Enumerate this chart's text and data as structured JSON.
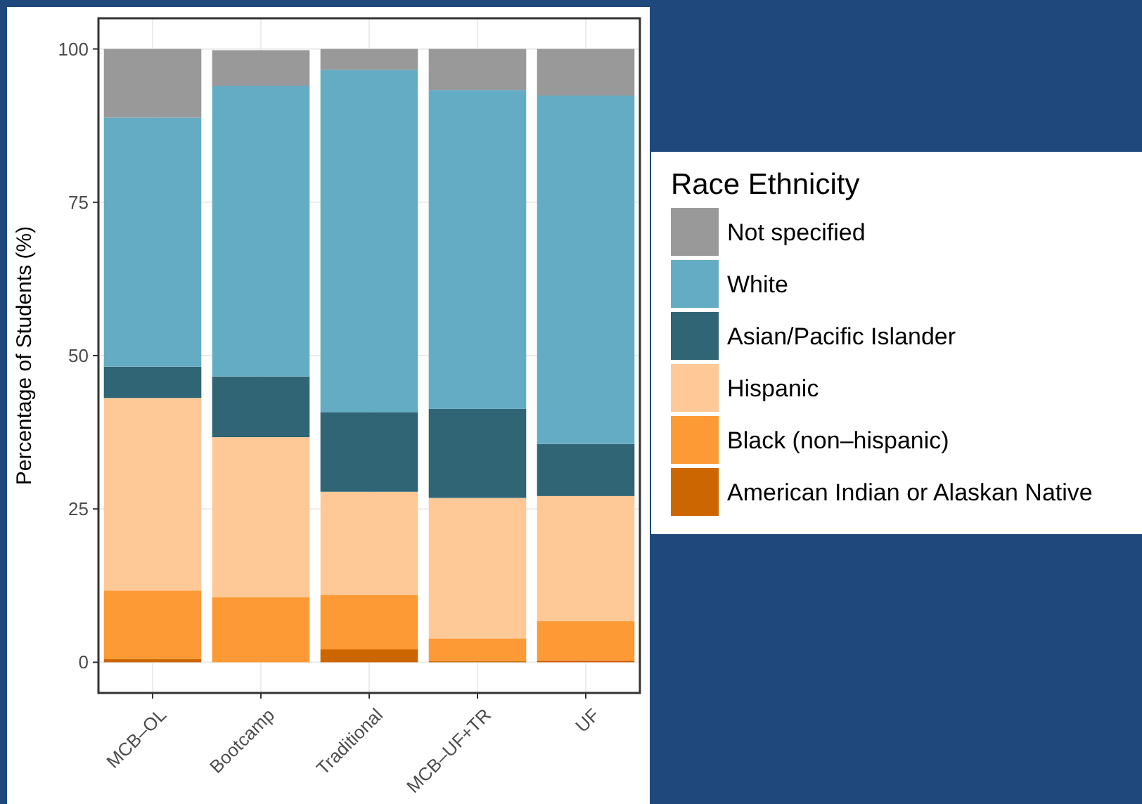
{
  "chart_data": {
    "type": "bar",
    "stacked": true,
    "ylabel": "Percentage of Students (%)",
    "legend_title": "Race Ethnicity",
    "legend": "right",
    "grid": true,
    "categories": [
      "MCB–OL",
      "Bootcamp",
      "Traditional",
      "MCB–UF+TR",
      "UF"
    ],
    "ylim": [
      -5,
      105
    ],
    "yticks": [
      0,
      25,
      50,
      75,
      100
    ],
    "series": [
      {
        "name": "American Indian or Alaskan Native",
        "color": "#cc6600",
        "values": [
          0.5,
          0,
          2.1,
          0.2,
          0.3
        ]
      },
      {
        "name": "Black (non–hispanic)",
        "color": "#fe9a35",
        "values": [
          11.2,
          10.6,
          8.9,
          3.7,
          6.4
        ]
      },
      {
        "name": "Hispanic",
        "color": "#fec997",
        "values": [
          31.4,
          26.1,
          16.8,
          22.9,
          20.4
        ]
      },
      {
        "name": "Asian/Pacific Islander",
        "color": "#2f6574",
        "values": [
          5.1,
          9.9,
          13.0,
          14.5,
          8.5
        ]
      },
      {
        "name": "White",
        "color": "#64acc4",
        "values": [
          40.6,
          47.4,
          55.8,
          52.0,
          56.8
        ]
      },
      {
        "name": "Not specified",
        "color": "#999999",
        "values": [
          11.2,
          5.8,
          3.4,
          6.7,
          7.6
        ]
      }
    ]
  }
}
